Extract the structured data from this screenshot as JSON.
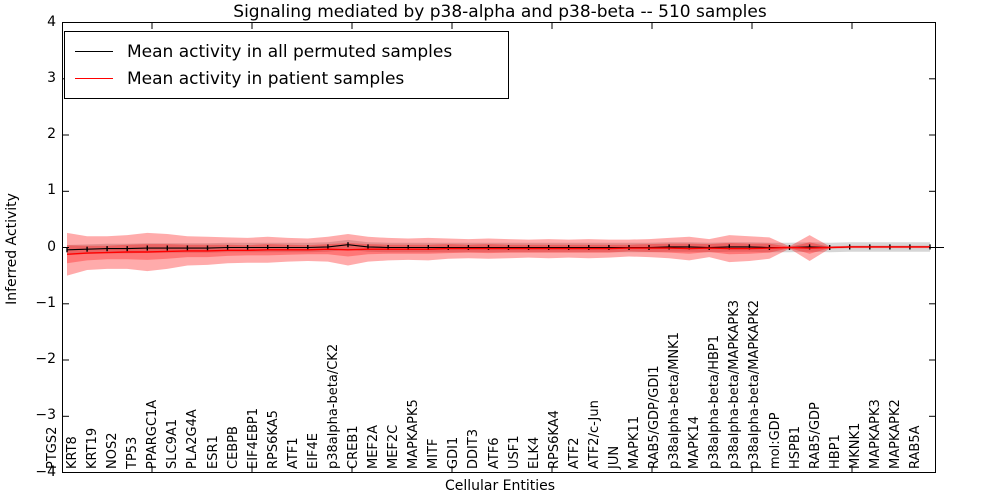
{
  "chart_data": {
    "type": "line",
    "title": "Signaling mediated by p38-alpha and p38-beta -- 510 samples",
    "xlabel": "Cellular Entities",
    "ylabel": "Inferred Activity",
    "ylim": [
      -4,
      4
    ],
    "yticks": [
      4,
      3,
      2,
      1,
      0,
      -1,
      -2,
      -3,
      -4
    ],
    "grid": false,
    "legend_position": "upper left",
    "categories": [
      "PTGS2",
      "KRT8",
      "KRT19",
      "NOS2",
      "TP53",
      "PPARGC1A",
      "SLC9A1",
      "PLA2G4A",
      "ESR1",
      "CEBPB",
      "EIF4EBP1",
      "RPS6KA5",
      "ATF1",
      "EIF4E",
      "p38alpha-beta/CK2",
      "CREB1",
      "MEF2A",
      "MEF2C",
      "MAPKAPK5",
      "MITF",
      "GDI1",
      "DDIT3",
      "ATF6",
      "USF1",
      "ELK4",
      "RPS6KA4",
      "ATF2",
      "ATF2/c-Jun",
      "JUN",
      "MAPK11",
      "RAB5/GDP/GDI1",
      "p38alpha-beta/MNK1",
      "MAPK14",
      "p38alpha-beta/HBP1",
      "p38alpha-beta/MAPKAPK3",
      "p38alpha-beta/MAPKAPK2",
      "mol:GDP",
      "HSPB1",
      "RAB5/GDP",
      "HBP1",
      "MKNK1",
      "MAPKAPK3",
      "MAPKAPK2",
      "RAB5A"
    ],
    "series": [
      {
        "name": "Mean activity in all permuted samples",
        "color": "#000000",
        "error_cap_half_width": 0.045,
        "values": [
          -0.04,
          -0.03,
          -0.02,
          -0.02,
          -0.01,
          -0.01,
          -0.01,
          -0.01,
          0,
          0,
          0,
          0,
          0,
          0.01,
          0.05,
          0.01,
          0,
          0,
          0,
          0,
          0,
          0,
          0,
          0,
          0,
          0,
          0,
          0,
          0,
          0,
          0.01,
          0.01,
          0,
          0.01,
          0.01,
          0,
          0,
          0.01,
          0,
          0.01,
          0.01,
          0.01,
          0.01,
          0.01
        ]
      },
      {
        "name": "Mean activity in patient samples",
        "color": "#ff0000",
        "values": [
          -0.12,
          -0.1,
          -0.09,
          -0.08,
          -0.08,
          -0.07,
          -0.06,
          -0.06,
          -0.05,
          -0.05,
          -0.04,
          -0.04,
          -0.04,
          -0.03,
          -0.04,
          -0.03,
          -0.03,
          -0.03,
          -0.03,
          -0.02,
          -0.02,
          -0.02,
          -0.02,
          -0.02,
          -0.02,
          -0.02,
          -0.02,
          -0.02,
          -0.01,
          -0.01,
          -0.01,
          -0.02,
          -0.01,
          -0.02,
          -0.02,
          -0.01,
          0,
          -0.01,
          0,
          0.01,
          0.01,
          0.01,
          0.01,
          0.01
        ]
      }
    ],
    "bands": [
      {
        "name": "permuted-samples-std-band",
        "color": "#999999",
        "opacity": 0.4,
        "center_series": 0,
        "half_widths": [
          0.085,
          0.085,
          0.085,
          0.085,
          0.085,
          0.085,
          0.085,
          0.085,
          0.085,
          0.085,
          0.085,
          0.085,
          0.085,
          0.085,
          0.085,
          0.085,
          0.085,
          0.085,
          0.085,
          0.085,
          0.085,
          0.085,
          0.085,
          0.085,
          0.085,
          0.085,
          0.085,
          0.085,
          0.085,
          0.085,
          0.085,
          0.085,
          0.085,
          0.085,
          0.085,
          0.085,
          0.085,
          0.085,
          0.085,
          0.085,
          0.085,
          0.085,
          0.085,
          0.085
        ]
      },
      {
        "name": "patient-samples-outer-band",
        "color": "#ff0000",
        "opacity": 0.33,
        "center_series": 1,
        "half_widths": [
          0.38,
          0.3,
          0.29,
          0.3,
          0.34,
          0.31,
          0.26,
          0.25,
          0.23,
          0.22,
          0.23,
          0.21,
          0.2,
          0.22,
          0.28,
          0.22,
          0.2,
          0.19,
          0.2,
          0.18,
          0.17,
          0.18,
          0.17,
          0.16,
          0.17,
          0.16,
          0.17,
          0.16,
          0.15,
          0.16,
          0.18,
          0.21,
          0.16,
          0.24,
          0.22,
          0.19,
          0.02,
          0.23,
          0.02,
          0.02,
          0.02,
          0.02,
          0.02,
          0.02
        ]
      },
      {
        "name": "patient-samples-inner-band",
        "color": "#ff0000",
        "opacity": 0.3,
        "center_series": 1,
        "half_widths": [
          0.16,
          0.13,
          0.12,
          0.13,
          0.14,
          0.13,
          0.11,
          0.11,
          0.1,
          0.09,
          0.1,
          0.09,
          0.08,
          0.09,
          0.12,
          0.09,
          0.08,
          0.08,
          0.08,
          0.08,
          0.07,
          0.08,
          0.07,
          0.07,
          0.07,
          0.07,
          0.07,
          0.07,
          0.06,
          0.07,
          0.08,
          0.09,
          0.07,
          0.1,
          0.09,
          0.08,
          0.01,
          0.1,
          0.01,
          0.01,
          0.01,
          0.01,
          0.01,
          0.01
        ]
      }
    ]
  }
}
